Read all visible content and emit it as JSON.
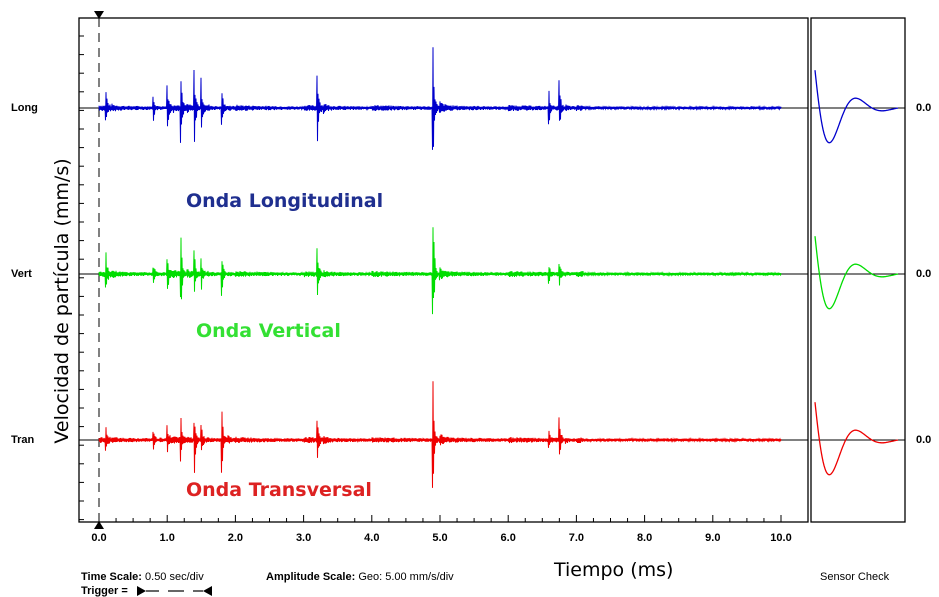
{
  "chart_data": {
    "type": "line",
    "xlabel": "Tiempo (ms)",
    "ylabel": "Velocidad de partícula (mm/s)",
    "xlim": [
      0,
      10.4
    ],
    "x_ticks": [
      "0.0",
      "1.0",
      "2.0",
      "3.0",
      "4.0",
      "5.0",
      "6.0",
      "7.0",
      "8.0",
      "9.0",
      "10.0"
    ],
    "grid": false,
    "event_times": [
      0.1,
      0.8,
      1.0,
      1.2,
      1.4,
      1.5,
      1.8,
      3.2,
      4.9,
      6.6,
      6.75
    ],
    "series": [
      {
        "name": "Long",
        "title": "Onda Longitudinal",
        "color": "#0000cc",
        "value": "0.0",
        "amplitudes": [
          0.22,
          0.12,
          0.3,
          0.34,
          0.38,
          0.26,
          0.26,
          0.48,
          0.64,
          0.16,
          0.26
        ]
      },
      {
        "name": "Vert",
        "title": "Onda Vertical",
        "color": "#00dd00",
        "value": "0.0",
        "amplitudes": [
          0.26,
          0.12,
          0.24,
          0.4,
          0.22,
          0.16,
          0.22,
          0.28,
          0.62,
          0.1,
          0.14
        ]
      },
      {
        "name": "Tran",
        "title": "Onda Transversal",
        "color": "#ee0000",
        "value": "0.0",
        "amplitudes": [
          0.12,
          0.1,
          0.18,
          0.22,
          0.34,
          0.14,
          0.44,
          0.28,
          0.58,
          0.1,
          0.3
        ]
      }
    ]
  },
  "footer": {
    "time_scale_label": "Time Scale:",
    "time_scale_value": "0.50 sec/div",
    "amplitude_scale_label": "Amplitude Scale:",
    "amplitude_scale_value": "Geo: 5.00 mm/s/div",
    "trigger_label": "Trigger =",
    "sensor_check": "Sensor Check"
  }
}
